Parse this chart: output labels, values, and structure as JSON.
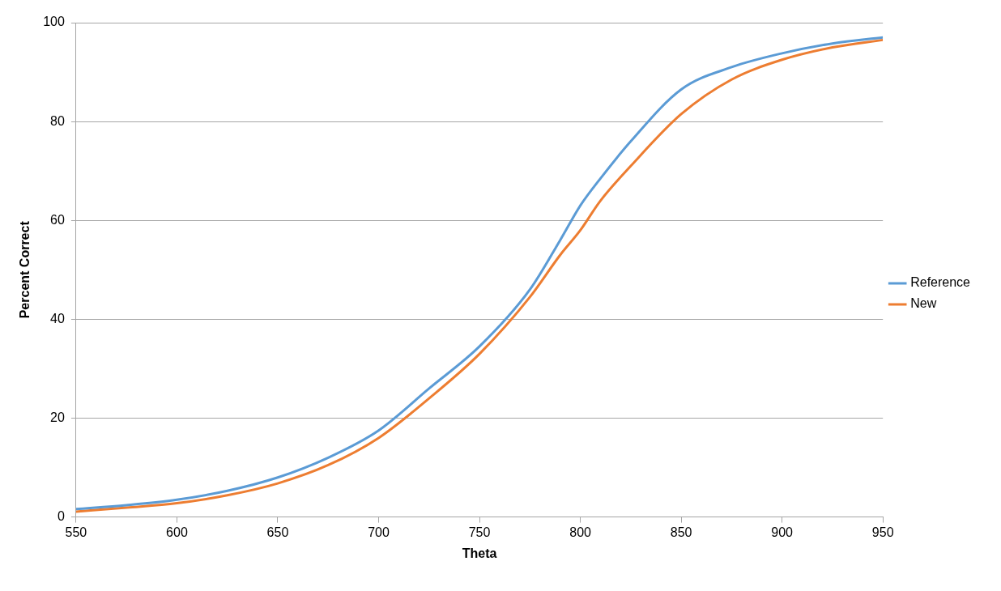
{
  "chart_data": {
    "type": "line",
    "xlabel": "Theta",
    "ylabel": "Percent Correct",
    "x": [
      550,
      575,
      600,
      625,
      650,
      675,
      700,
      725,
      750,
      775,
      790,
      800,
      810,
      825,
      850,
      875,
      900,
      925,
      950
    ],
    "series": [
      {
        "name": "Reference",
        "color": "#5b9bd5",
        "values": [
          1.6,
          2.4,
          3.5,
          5.3,
          8,
          12,
          17.5,
          26,
          34.5,
          46,
          56,
          63,
          68.5,
          76,
          86.5,
          91,
          93.8,
          95.8,
          97
        ]
      },
      {
        "name": "New",
        "color": "#ed7d31",
        "values": [
          1.1,
          1.9,
          2.8,
          4.4,
          6.8,
          10.5,
          16,
          24,
          33,
          44.5,
          53,
          58,
          64,
          71,
          81.5,
          88.5,
          92.5,
          95,
          96.5
        ]
      }
    ],
    "xlim": [
      550,
      950
    ],
    "xticks": [
      550,
      600,
      650,
      700,
      750,
      800,
      850,
      900,
      950
    ],
    "ylim": [
      0,
      100
    ],
    "yticks": [
      0,
      20,
      40,
      60,
      80,
      100
    ],
    "grid": "y",
    "legend": "right",
    "marker": "none",
    "line_style": "solid"
  }
}
